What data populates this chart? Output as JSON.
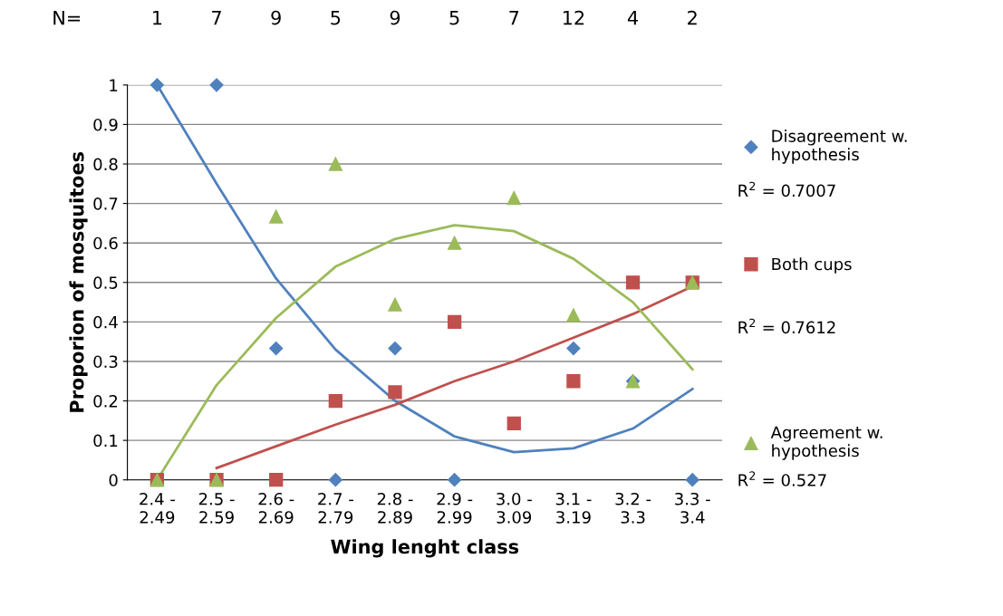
{
  "chart_data": {
    "type": "scatter",
    "xlabel": "Wing lenght class",
    "ylabel": "Proporion of mosquitoes",
    "categories": [
      "2.4 -\n2.49",
      "2.5 -\n2.59",
      "2.6 -\n2.69",
      "2.7 -\n2.79",
      "2.8 -\n2.89",
      "2.9 -\n2.99",
      "3.0 -\n3.09",
      "3.1 -\n3.19",
      "3.2 -\n3.3",
      "3.3 -\n3.4"
    ],
    "ylim": [
      0,
      1
    ],
    "yticks": [
      0,
      0.1,
      0.2,
      0.3,
      0.4,
      0.5,
      0.6,
      0.7,
      0.8,
      0.9,
      1
    ],
    "grid": "y",
    "legend": "right",
    "series": [
      {
        "name": "Disagreement w.\nhypothesis",
        "marker": "diamond",
        "color": "#4f81bd",
        "values": [
          1,
          1,
          0.333,
          0,
          0.333,
          0,
          null,
          0.333,
          0.25,
          0
        ]
      },
      {
        "name": "Both cups",
        "marker": "square",
        "color": "#c0504d",
        "values": [
          0,
          0,
          0,
          0.2,
          0.222,
          0.4,
          0.143,
          0.25,
          0.5,
          0.5
        ]
      },
      {
        "name": "Agreement w.\nhypothesis",
        "marker": "triangle",
        "color": "#9bbb59",
        "values": [
          0,
          0,
          0.667,
          0.8,
          0.444,
          0.6,
          0.714,
          0.417,
          0.25,
          0.5
        ]
      },
      {
        "type": "line",
        "color": "#4f81bd",
        "values": [
          1.0,
          0.75,
          0.51,
          0.33,
          0.2,
          0.11,
          0.07,
          0.08,
          0.13,
          0.23
        ]
      },
      {
        "type": "line",
        "color": "#c0504d",
        "values": [
          null,
          0.03,
          0.085,
          0.14,
          0.19,
          0.25,
          0.3,
          0.36,
          0.42,
          0.49
        ]
      },
      {
        "type": "line",
        "color": "#9bbb59",
        "values": [
          0.0,
          0.24,
          0.41,
          0.54,
          0.61,
          0.645,
          0.63,
          0.56,
          0.45,
          0.28
        ]
      }
    ],
    "annotations": [
      "N=",
      "1",
      "7",
      "9",
      "5",
      "9",
      "5",
      "7",
      "12",
      "4",
      "2",
      "R$^{2}$ = 0.7007",
      "R$^{2}$ = 0.7612",
      "R$^{2}$ = 0.527"
    ]
  }
}
